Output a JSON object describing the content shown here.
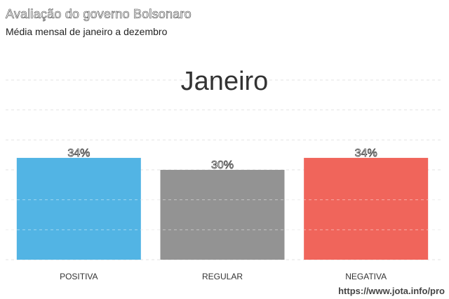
{
  "chart_data": {
    "type": "bar",
    "title": "Avaliação do governo Bolsonaro",
    "subtitle": "Média mensal de janeiro a dezembro",
    "month_label": "Janeiro",
    "categories": [
      "POSITIVA",
      "REGULAR",
      "NEGATIVA"
    ],
    "values": [
      34,
      30,
      34
    ],
    "value_labels": [
      "34%",
      "30%",
      "34%"
    ],
    "colors": [
      "#52b4e4",
      "#939393",
      "#f0655b"
    ],
    "ylim": [
      0,
      60
    ],
    "grid": true,
    "xlabel": "",
    "ylabel": ""
  },
  "source": "https://www.jota.info/pro"
}
